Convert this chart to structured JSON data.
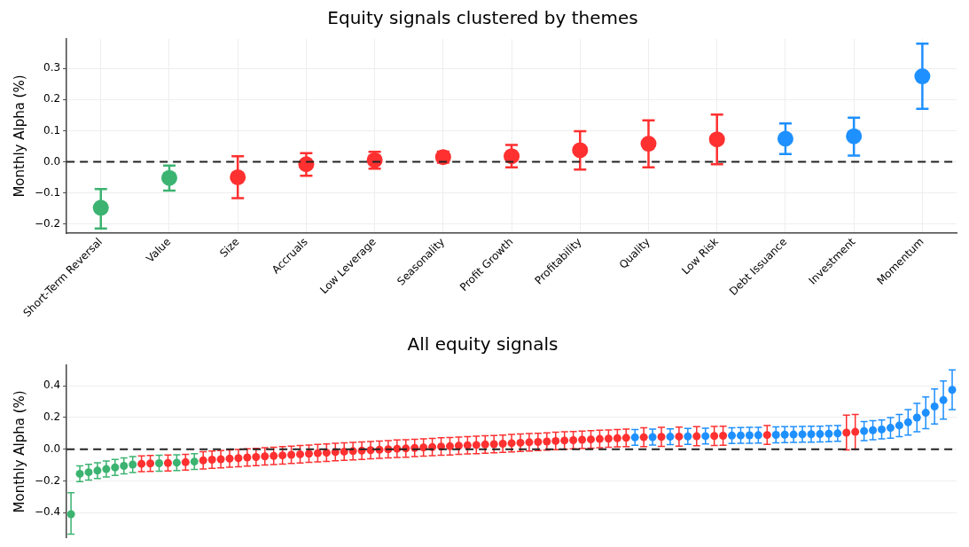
{
  "chart_data": [
    {
      "type": "scatter",
      "title": "Equity signals clustered by themes",
      "ylabel": "Monthly Alpha (%)",
      "categories": [
        "Short-Term Reversal",
        "Value",
        "Size",
        "Accruals",
        "Low Leverage",
        "Seasonality",
        "Profit Growth",
        "Profitability",
        "Quality",
        "Low Risk",
        "Debt Issuance",
        "Investment",
        "Momentum"
      ],
      "values": [
        -0.148,
        -0.052,
        -0.05,
        -0.008,
        0.005,
        0.015,
        0.018,
        0.037,
        0.058,
        0.072,
        0.074,
        0.082,
        0.275
      ],
      "errors": [
        [
          -0.215,
          -0.088
        ],
        [
          -0.093,
          -0.012
        ],
        [
          -0.117,
          0.018
        ],
        [
          -0.045,
          0.028
        ],
        [
          -0.022,
          0.032
        ],
        [
          -0.003,
          0.033
        ],
        [
          -0.018,
          0.054
        ],
        [
          -0.025,
          0.098
        ],
        [
          -0.018,
          0.133
        ],
        [
          -0.008,
          0.152
        ],
        [
          0.025,
          0.123
        ],
        [
          0.02,
          0.142
        ],
        [
          0.17,
          0.38
        ]
      ],
      "colors": [
        "#3cb371",
        "#3cb371",
        "#ff3030",
        "#ff3030",
        "#ff3030",
        "#ff3030",
        "#ff3030",
        "#ff3030",
        "#ff3030",
        "#ff3030",
        "#1e90ff",
        "#1e90ff",
        "#1e90ff"
      ],
      "ylim": [
        -0.23,
        0.395
      ],
      "yticks": [
        {
          "value": -0.2,
          "label": "−0.2"
        },
        {
          "value": -0.1,
          "label": "−0.1"
        },
        {
          "value": 0,
          "label": "0.0"
        },
        0.1,
        0.2,
        0.3
      ],
      "grid": true,
      "marker": "circle",
      "legend": false,
      "ref_lines": [
        {
          "axis": "y",
          "value": 0,
          "color": "#222222",
          "line_style": "dashed"
        }
      ]
    },
    {
      "type": "scatter",
      "title": "All equity signals",
      "ylabel": "Monthly Alpha (%)",
      "categories": [
        null,
        null,
        null,
        null,
        null,
        null,
        null,
        null,
        null,
        null,
        null,
        null,
        null,
        null,
        null,
        null,
        null,
        null,
        null,
        null,
        null,
        null,
        null,
        null,
        null,
        null,
        null,
        null,
        null,
        null,
        null,
        null,
        null,
        null,
        null,
        null,
        null,
        null,
        null,
        null,
        null,
        null,
        null,
        null,
        null,
        null,
        null,
        null,
        null,
        null,
        null,
        null,
        null,
        null,
        null,
        null,
        null,
        null,
        null,
        null,
        null,
        null,
        null,
        null,
        null,
        null,
        null,
        null,
        null,
        null,
        null,
        null,
        null,
        null,
        null,
        null,
        null,
        null,
        null,
        null,
        null,
        null,
        null,
        null,
        null,
        null,
        null,
        null,
        null,
        null,
        null,
        null,
        null,
        null,
        null,
        null,
        null,
        null,
        null,
        null,
        null
      ],
      "values": [
        -0.41,
        -0.155,
        -0.145,
        -0.135,
        -0.125,
        -0.115,
        -0.105,
        -0.097,
        -0.092,
        -0.09,
        -0.088,
        -0.087,
        -0.085,
        -0.082,
        -0.078,
        -0.07,
        -0.066,
        -0.063,
        -0.059,
        -0.056,
        -0.052,
        -0.049,
        -0.045,
        -0.042,
        -0.039,
        -0.035,
        -0.032,
        -0.028,
        -0.025,
        -0.022,
        -0.018,
        -0.015,
        -0.012,
        -0.009,
        -0.006,
        -0.003,
        0.0,
        0.003,
        0.005,
        0.008,
        0.011,
        0.014,
        0.017,
        0.019,
        0.022,
        0.025,
        0.027,
        0.03,
        0.032,
        0.035,
        0.038,
        0.041,
        0.044,
        0.046,
        0.049,
        0.052,
        0.055,
        0.057,
        0.06,
        0.062,
        0.065,
        0.067,
        0.07,
        0.072,
        0.075,
        0.076,
        0.077,
        0.078,
        0.079,
        0.08,
        0.081,
        0.082,
        0.083,
        0.084,
        0.085,
        0.086,
        0.087,
        0.088,
        0.089,
        0.09,
        0.091,
        0.092,
        0.093,
        0.094,
        0.095,
        0.096,
        0.098,
        0.1,
        0.105,
        0.11,
        0.115,
        0.12,
        0.125,
        0.135,
        0.15,
        0.17,
        0.2,
        0.23,
        0.27,
        0.31,
        0.375
      ],
      "errors": [
        [
          -0.536,
          -0.275
        ],
        0.05,
        0.05,
        0.05,
        0.05,
        0.05,
        0.05,
        0.05,
        0.05,
        0.05,
        0.05,
        0.05,
        0.05,
        0.05,
        0.05,
        0.055,
        0.055,
        0.055,
        0.055,
        0.055,
        0.055,
        0.055,
        0.055,
        0.055,
        0.055,
        0.055,
        0.055,
        0.055,
        0.055,
        0.055,
        0.055,
        0.055,
        0.055,
        0.055,
        0.055,
        0.055,
        0.055,
        0.055,
        0.055,
        0.055,
        0.055,
        0.055,
        0.055,
        0.055,
        0.055,
        0.055,
        0.055,
        0.055,
        0.055,
        0.055,
        0.055,
        0.055,
        0.055,
        0.055,
        0.055,
        0.055,
        0.055,
        0.055,
        0.055,
        0.055,
        0.055,
        0.055,
        0.055,
        0.055,
        0.05,
        0.06,
        0.05,
        0.06,
        0.05,
        0.06,
        0.05,
        0.06,
        0.05,
        0.06,
        0.06,
        0.05,
        0.05,
        0.05,
        0.05,
        0.06,
        0.05,
        0.05,
        0.05,
        0.05,
        0.05,
        0.05,
        0.05,
        0.05,
        0.11,
        0.11,
        0.06,
        0.06,
        0.06,
        0.065,
        0.07,
        0.08,
        0.09,
        0.1,
        0.11,
        0.12,
        0.125
      ],
      "colors": [
        "#3cb371",
        "#3cb371",
        "#3cb371",
        "#3cb371",
        "#3cb371",
        "#3cb371",
        "#3cb371",
        "#3cb371",
        "#ff3030",
        "#ff3030",
        "#3cb371",
        "#ff3030",
        "#3cb371",
        "#ff3030",
        "#3cb371",
        "#ff3030",
        "#ff3030",
        "#ff3030",
        "#ff3030",
        "#ff3030",
        "#ff3030",
        "#ff3030",
        "#ff3030",
        "#ff3030",
        "#ff3030",
        "#ff3030",
        "#ff3030",
        "#ff3030",
        "#ff3030",
        "#ff3030",
        "#ff3030",
        "#ff3030",
        "#ff3030",
        "#ff3030",
        "#ff3030",
        "#ff3030",
        "#ff3030",
        "#ff3030",
        "#ff3030",
        "#ff3030",
        "#ff3030",
        "#ff3030",
        "#ff3030",
        "#ff3030",
        "#ff3030",
        "#ff3030",
        "#ff3030",
        "#ff3030",
        "#ff3030",
        "#ff3030",
        "#ff3030",
        "#ff3030",
        "#ff3030",
        "#ff3030",
        "#ff3030",
        "#ff3030",
        "#ff3030",
        "#ff3030",
        "#ff3030",
        "#ff3030",
        "#ff3030",
        "#ff3030",
        "#ff3030",
        "#ff3030",
        "#1e90ff",
        "#ff3030",
        "#1e90ff",
        "#ff3030",
        "#1e90ff",
        "#ff3030",
        "#1e90ff",
        "#ff3030",
        "#1e90ff",
        "#ff3030",
        "#ff3030",
        "#1e90ff",
        "#1e90ff",
        "#1e90ff",
        "#1e90ff",
        "#ff3030",
        "#1e90ff",
        "#1e90ff",
        "#1e90ff",
        "#1e90ff",
        "#1e90ff",
        "#1e90ff",
        "#1e90ff",
        "#1e90ff",
        "#ff3030",
        "#ff3030",
        "#1e90ff",
        "#1e90ff",
        "#1e90ff",
        "#1e90ff",
        "#1e90ff",
        "#1e90ff",
        "#1e90ff",
        "#1e90ff",
        "#1e90ff",
        "#1e90ff",
        "#1e90ff"
      ],
      "ylim": [
        -0.56,
        0.53
      ],
      "yticks": [
        {
          "value": -0.4,
          "label": "−0.4"
        },
        {
          "value": -0.2,
          "label": "−0.2"
        },
        {
          "value": 0,
          "label": "0.0"
        },
        0.2,
        0.4
      ],
      "grid": "y",
      "marker": "circle",
      "legend": false,
      "tick_labels": "y",
      "ref_lines": [
        {
          "axis": "y",
          "value": 0,
          "color": "#222222",
          "line_style": "dashed"
        }
      ]
    }
  ]
}
